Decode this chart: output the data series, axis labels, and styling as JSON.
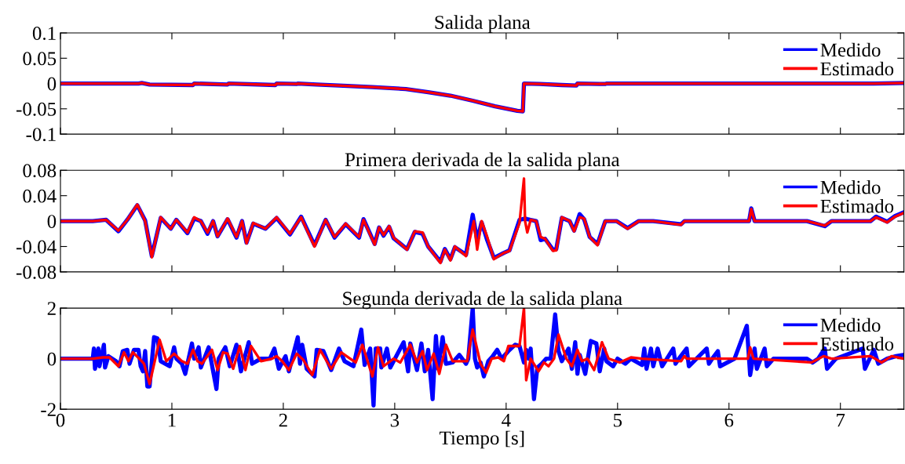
{
  "chart_data": [
    {
      "type": "line",
      "title": "Salida plana",
      "xlim": [
        0,
        7.57
      ],
      "xticks": [
        0,
        1,
        2,
        3,
        4,
        5,
        6,
        7
      ],
      "ylim": [
        -0.1,
        0.1
      ],
      "yticks": [
        {
          "value": -0.1,
          "label": "-0.1"
        },
        {
          "value": -0.05,
          "label": "-0.05"
        },
        0,
        0.05,
        0.1
      ],
      "tick_labels": "y",
      "legend": "top right",
      "grid": false,
      "line_style": "solid",
      "series": [
        {
          "name": "Medido",
          "color": "#0000ff",
          "x": [
            0,
            0.7,
            0.73,
            0.8,
            1.19,
            1.2,
            1.5,
            1.51,
            1.93,
            1.94,
            2.12,
            2.13,
            2.3,
            2.5,
            2.8,
            3.1,
            3.3,
            3.5,
            3.7,
            3.9,
            4.1,
            4.15,
            4.16,
            4.3,
            4.5,
            4.63,
            4.64,
            4.89,
            4.9,
            5.5,
            6.5,
            7.3,
            7.57
          ],
          "values": [
            0,
            0,
            0.001,
            -0.002,
            -0.003,
            0,
            -0.002,
            0,
            -0.003,
            0,
            -0.001,
            0,
            -0.002,
            -0.004,
            -0.007,
            -0.011,
            -0.017,
            -0.024,
            -0.034,
            -0.045,
            -0.054,
            -0.055,
            0,
            -0.001,
            -0.003,
            -0.004,
            0,
            -0.001,
            0,
            0,
            0,
            0,
            0.001
          ]
        },
        {
          "name": "Estimado",
          "color": "#ff0000",
          "x": [
            0,
            0.7,
            0.73,
            0.8,
            1.19,
            1.2,
            1.5,
            1.51,
            1.93,
            1.94,
            2.12,
            2.13,
            2.3,
            2.5,
            2.8,
            3.1,
            3.3,
            3.5,
            3.7,
            3.9,
            4.1,
            4.15,
            4.16,
            4.3,
            4.5,
            4.63,
            4.64,
            4.89,
            4.9,
            5.5,
            6.5,
            7.3,
            7.57
          ],
          "values": [
            0,
            0,
            0.001,
            -0.002,
            -0.003,
            0,
            -0.002,
            0,
            -0.003,
            0,
            -0.001,
            0,
            -0.002,
            -0.004,
            -0.007,
            -0.011,
            -0.017,
            -0.024,
            -0.034,
            -0.045,
            -0.054,
            -0.055,
            0,
            -0.001,
            -0.003,
            -0.004,
            0,
            -0.001,
            0,
            0,
            0,
            0,
            0.001
          ]
        }
      ]
    },
    {
      "type": "line",
      "title": "Primera derivada de la salida plana",
      "xlim": [
        0,
        7.57
      ],
      "xticks": [
        0,
        1,
        2,
        3,
        4,
        5,
        6,
        7
      ],
      "ylim": [
        -0.08,
        0.08
      ],
      "yticks": [
        {
          "value": -0.08,
          "label": "-0.08"
        },
        {
          "value": -0.04,
          "label": "-0.04"
        },
        0,
        0.04,
        0.08
      ],
      "tick_labels": "y",
      "legend": "top right",
      "grid": false,
      "line_style": "solid",
      "series": [
        {
          "name": "Medido",
          "color": "#0000ff",
          "x": [
            0,
            0.29,
            0.41,
            0.52,
            0.6,
            0.69,
            0.76,
            0.82,
            0.9,
            0.99,
            1.04,
            1.14,
            1.2,
            1.26,
            1.32,
            1.37,
            1.41,
            1.5,
            1.58,
            1.63,
            1.67,
            1.73,
            1.84,
            1.94,
            2.06,
            2.16,
            2.28,
            2.38,
            2.46,
            2.56,
            2.68,
            2.72,
            2.82,
            2.86,
            2.9,
            2.95,
            2.99,
            3.11,
            3.18,
            3.25,
            3.3,
            3.41,
            3.45,
            3.5,
            3.54,
            3.64,
            3.7,
            3.74,
            3.78,
            3.83,
            3.89,
            3.98,
            4.03,
            4.12,
            4.17,
            4.19,
            4.22,
            4.27,
            4.31,
            4.35,
            4.42,
            4.45,
            4.5,
            4.57,
            4.61,
            4.66,
            4.7,
            4.75,
            4.82,
            4.89,
            4.99,
            5.09,
            5.19,
            5.32,
            5.57,
            5.6,
            5.95,
            6.18,
            6.2,
            6.23,
            6.7,
            6.86,
            6.92,
            7.27,
            7.32,
            7.42,
            7.49,
            7.57
          ],
          "values": [
            0,
            0,
            0.002,
            -0.016,
            0.002,
            0.025,
            0.001,
            -0.055,
            0.005,
            -0.012,
            0.002,
            -0.019,
            0.004,
            0,
            -0.02,
            0,
            -0.024,
            0.003,
            -0.026,
            0,
            -0.034,
            -0.004,
            -0.012,
            0.005,
            -0.021,
            0.007,
            -0.038,
            0.002,
            -0.026,
            -0.005,
            -0.026,
            0.003,
            -0.036,
            -0.01,
            -0.023,
            -0.009,
            -0.027,
            -0.044,
            -0.017,
            -0.02,
            -0.04,
            -0.064,
            -0.044,
            -0.06,
            -0.041,
            -0.053,
            0.01,
            -0.03,
            -0.002,
            -0.03,
            -0.058,
            -0.05,
            -0.046,
            0.002,
            0.004,
            0.003,
            0.002,
            0,
            -0.03,
            -0.028,
            -0.045,
            -0.044,
            0.005,
            0,
            -0.015,
            0.011,
            0.003,
            -0.025,
            -0.036,
            0,
            0,
            -0.011,
            0,
            0,
            -0.005,
            0,
            0,
            0,
            0.02,
            0,
            0,
            -0.008,
            0,
            0,
            0.007,
            -0.001,
            0.008,
            0.014
          ]
        },
        {
          "name": "Estimado",
          "color": "#ff0000",
          "x": [
            0,
            0.29,
            0.41,
            0.52,
            0.6,
            0.69,
            0.76,
            0.82,
            0.9,
            0.99,
            1.04,
            1.14,
            1.2,
            1.26,
            1.32,
            1.37,
            1.41,
            1.5,
            1.58,
            1.63,
            1.67,
            1.73,
            1.84,
            1.94,
            2.06,
            2.16,
            2.28,
            2.38,
            2.46,
            2.56,
            2.68,
            2.72,
            2.82,
            2.86,
            2.9,
            2.95,
            2.99,
            3.11,
            3.18,
            3.25,
            3.3,
            3.41,
            3.45,
            3.5,
            3.54,
            3.64,
            3.71,
            3.74,
            3.78,
            3.83,
            3.89,
            3.98,
            4.03,
            4.12,
            4.16,
            4.17,
            4.19,
            4.22,
            4.27,
            4.31,
            4.35,
            4.42,
            4.45,
            4.5,
            4.57,
            4.61,
            4.66,
            4.7,
            4.75,
            4.82,
            4.89,
            4.99,
            5.09,
            5.19,
            5.32,
            5.57,
            5.6,
            5.95,
            6.18,
            6.2,
            6.23,
            6.7,
            6.86,
            6.92,
            7.27,
            7.32,
            7.42,
            7.49,
            7.57
          ],
          "values": [
            0,
            0,
            0.002,
            -0.015,
            0.002,
            0.026,
            0,
            -0.057,
            0.006,
            -0.012,
            0.002,
            -0.018,
            0.006,
            0,
            -0.018,
            0,
            -0.024,
            0.004,
            -0.025,
            0,
            -0.035,
            -0.003,
            -0.012,
            0.006,
            -0.02,
            0.006,
            -0.04,
            0.002,
            -0.025,
            -0.004,
            -0.025,
            0.002,
            -0.037,
            -0.01,
            -0.022,
            -0.008,
            -0.026,
            -0.045,
            -0.016,
            -0.018,
            -0.04,
            -0.066,
            -0.045,
            -0.062,
            -0.04,
            -0.055,
            0,
            -0.045,
            0,
            -0.025,
            -0.06,
            -0.05,
            -0.047,
            -0.003,
            0.067,
            0,
            -0.018,
            0.002,
            0,
            -0.025,
            -0.028,
            -0.047,
            -0.046,
            0.006,
            0,
            -0.016,
            0.006,
            0.004,
            -0.025,
            -0.038,
            0,
            0,
            -0.012,
            0,
            0,
            -0.006,
            0,
            0,
            0,
            0.019,
            0,
            0,
            -0.007,
            0,
            0,
            0.006,
            -0.002,
            0.007,
            0.013
          ]
        }
      ]
    },
    {
      "type": "line",
      "title": "Segunda derivada de la salida plana",
      "xlabel": "Tiempo [s]",
      "xlim": [
        0,
        7.57
      ],
      "xticks": [
        0,
        1,
        2,
        3,
        4,
        5,
        6,
        7
      ],
      "ylim": [
        -2,
        2
      ],
      "yticks": [
        {
          "value": -2,
          "label": "-2"
        },
        0,
        2
      ],
      "legend": "top right",
      "grid": false,
      "line_style": "solid",
      "series": [
        {
          "name": "Medido",
          "color": "#0000ff",
          "x": [
            0,
            0.29,
            0.3,
            0.31,
            0.34,
            0.35,
            0.39,
            0.4,
            0.43,
            0.5,
            0.53,
            0.56,
            0.6,
            0.62,
            0.66,
            0.7,
            0.72,
            0.74,
            0.76,
            0.78,
            0.8,
            0.84,
            0.87,
            0.9,
            0.98,
            1.02,
            1.04,
            1.09,
            1.12,
            1.18,
            1.2,
            1.24,
            1.26,
            1.33,
            1.4,
            1.42,
            1.48,
            1.52,
            1.58,
            1.62,
            1.69,
            1.72,
            1.8,
            1.88,
            1.92,
            1.96,
            2.02,
            2.05,
            2.13,
            2.15,
            2.17,
            2.21,
            2.28,
            2.3,
            2.36,
            2.43,
            2.5,
            2.55,
            2.63,
            2.7,
            2.73,
            2.78,
            2.81,
            2.83,
            2.87,
            2.88,
            2.93,
            2.96,
            3.08,
            3.12,
            3.14,
            3.2,
            3.24,
            3.27,
            3.3,
            3.34,
            3.37,
            3.39,
            3.43,
            3.46,
            3.52,
            3.58,
            3.64,
            3.66,
            3.7,
            3.72,
            3.74,
            3.77,
            3.8,
            3.84,
            3.88,
            3.92,
            3.96,
            4.02,
            4.08,
            4.12,
            4.16,
            4.18,
            4.2,
            4.22,
            4.25,
            4.28,
            4.32,
            4.36,
            4.4,
            4.44,
            4.47,
            4.5,
            4.56,
            4.59,
            4.62,
            4.64,
            4.66,
            4.71,
            4.76,
            4.81,
            4.84,
            4.88,
            4.9,
            4.96,
            5.0,
            5.07,
            5.12,
            5.22,
            5.24,
            5.26,
            5.3,
            5.32,
            5.36,
            5.4,
            5.5,
            5.52,
            5.55,
            5.62,
            5.64,
            5.8,
            5.82,
            5.85,
            5.9,
            5.92,
            6.05,
            6.16,
            6.19,
            6.23,
            6.25,
            6.32,
            6.34,
            6.4,
            6.7,
            6.75,
            6.8,
            6.86,
            6.88,
            6.96,
            7.2,
            7.22,
            7.3,
            7.34,
            7.42,
            7.5,
            7.57
          ],
          "values": [
            0,
            0,
            0.4,
            -0.4,
            0.4,
            -0.3,
            0.55,
            -0.35,
            0.1,
            -0.1,
            -0.3,
            0.3,
            0.35,
            -0.2,
            0.35,
            0.35,
            -0.3,
            -0.5,
            0.3,
            -1.1,
            -1.1,
            0.85,
            0.8,
            -0.1,
            -0.3,
            0.45,
            0,
            -0.2,
            -0.6,
            0.6,
            0,
            0.45,
            -0.35,
            0.45,
            -1.2,
            0,
            0.45,
            -0.3,
            0.55,
            -0.5,
            0.65,
            -0.2,
            0,
            0,
            0.4,
            -0.4,
            0.1,
            -0.5,
            0.85,
            -0.2,
            0.55,
            -0.4,
            -0.7,
            0.35,
            0.3,
            -0.45,
            0.4,
            -0.1,
            -0.3,
            1.15,
            -0.25,
            0.4,
            -1.85,
            0.4,
            0.4,
            -0.35,
            0.4,
            -0.35,
            0.65,
            -0.5,
            0.6,
            -0.45,
            0.6,
            -0.5,
            0.35,
            -1.6,
            0.9,
            -0.4,
            0.85,
            -0.2,
            -0.15,
            0.15,
            -0.2,
            0,
            2,
            0,
            -0.35,
            -0.15,
            -0.7,
            -0.1,
            0.1,
            0.35,
            0,
            0.3,
            0.55,
            0.5,
            -0.15,
            0.35,
            0,
            0.4,
            -1.6,
            -0.35,
            -0.2,
            0,
            0,
            1.75,
            0.3,
            -0.1,
            0.4,
            -0.4,
            0.65,
            -0.6,
            0.15,
            -0.6,
            0.7,
            0.6,
            -0.5,
            0.4,
            -0.1,
            -0.3,
            0,
            -0.2,
            0,
            -0.25,
            0.4,
            -0.4,
            0.4,
            -0.3,
            0.4,
            -0.3,
            0.4,
            -0.2,
            0,
            0.4,
            -0.3,
            0.4,
            -0.2,
            0,
            0.3,
            -0.3,
            0,
            1.3,
            -0.65,
            0.4,
            -0.4,
            0.4,
            -0.3,
            0,
            0,
            -0.15,
            0,
            0.4,
            -0.4,
            0,
            0.4,
            -0.4,
            0.35,
            -0.2,
            0,
            0.1,
            0.15
          ]
        },
        {
          "name": "Estimado",
          "color": "#ff0000",
          "x": [
            0,
            0.29,
            0.38,
            0.44,
            0.52,
            0.57,
            0.61,
            0.65,
            0.73,
            0.75,
            0.8,
            0.89,
            0.95,
            1.02,
            1.09,
            1.14,
            1.19,
            1.23,
            1.27,
            1.36,
            1.41,
            1.46,
            1.5,
            1.55,
            1.61,
            1.66,
            1.71,
            1.8,
            1.9,
            1.94,
            1.99,
            2.05,
            2.12,
            2.18,
            2.26,
            2.33,
            2.43,
            2.52,
            2.6,
            2.65,
            2.71,
            2.8,
            2.85,
            2.9,
            2.99,
            3.05,
            3.14,
            3.2,
            3.25,
            3.29,
            3.35,
            3.4,
            3.46,
            3.52,
            3.57,
            3.65,
            3.7,
            3.77,
            3.82,
            3.87,
            3.93,
            3.98,
            4.02,
            4.12,
            4.16,
            4.18,
            4.22,
            4.29,
            4.34,
            4.38,
            4.43,
            4.47,
            4.54,
            4.59,
            4.64,
            4.68,
            4.73,
            4.79,
            4.86,
            4.92,
            5.02,
            5.12,
            5.22,
            5.57,
            5.6,
            5.62,
            6.17,
            6.19,
            6.22,
            6.74,
            6.85,
            6.92,
            7.27,
            7.37,
            7.46,
            7.57
          ],
          "values": [
            0,
            0,
            0.05,
            0.05,
            -0.3,
            0.25,
            -0.1,
            0.25,
            -0.1,
            -0.2,
            -1.0,
            0.75,
            -0.1,
            0.2,
            -0.1,
            -0.2,
            0.35,
            -0.1,
            -0.2,
            0.35,
            -0.45,
            0.25,
            0.2,
            -0.4,
            0.5,
            -0.45,
            0.5,
            -0.1,
            0,
            0.1,
            -0.1,
            -0.45,
            0.2,
            -0.05,
            -0.65,
            0.35,
            -0.4,
            0.25,
            0,
            -0.15,
            0.55,
            -0.7,
            0.45,
            -0.3,
            0,
            -0.15,
            0.55,
            -0.15,
            0.3,
            -0.45,
            0.2,
            -0.6,
            0.55,
            -0.1,
            -0.1,
            -0.1,
            1.15,
            -0.2,
            -0.55,
            0,
            0.05,
            -0.1,
            0.5,
            0.5,
            2,
            -0.85,
            0,
            -0.5,
            -0.15,
            -0.3,
            0,
            0.95,
            0,
            -0.3,
            0.35,
            -0.1,
            0,
            -0.45,
            0.65,
            0,
            -0.15,
            0.05,
            0,
            -0.1,
            0.1,
            0,
            0,
            0.45,
            0,
            -0.15,
            0.1,
            0,
            0.1,
            -0.15,
            0.1,
            0
          ]
        }
      ]
    }
  ]
}
